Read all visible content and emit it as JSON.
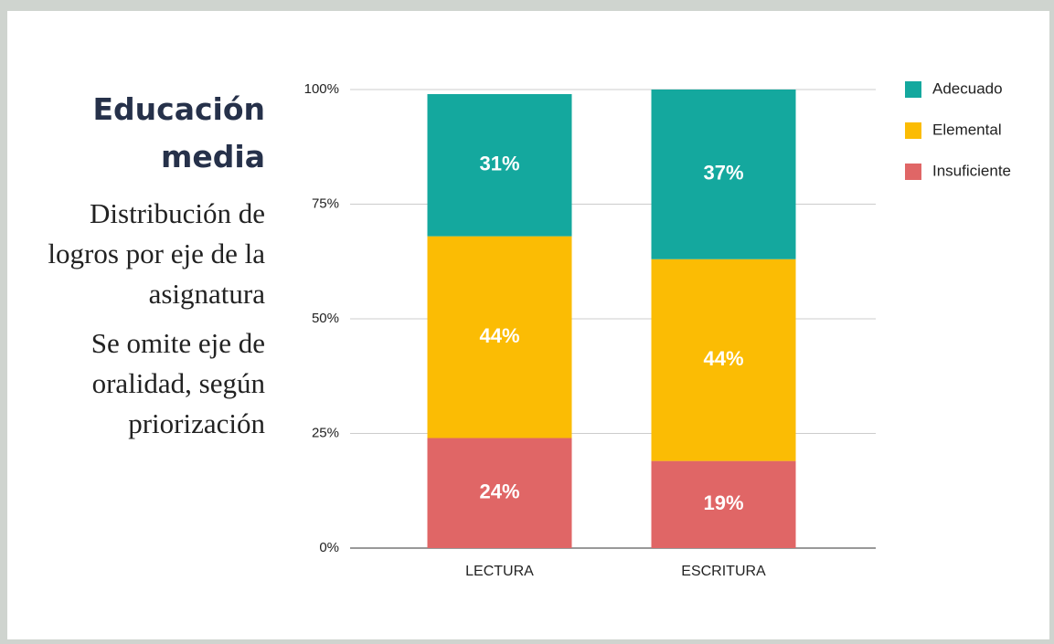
{
  "header": {
    "title": "Educación media",
    "paragraphs": [
      [
        "Distribución de",
        "logros por eje de la",
        "asignatura"
      ],
      [
        "Se omite eje de",
        "oralidad, según",
        "priorización"
      ]
    ]
  },
  "chart_data": {
    "type": "stacked_bar",
    "categories": [
      "LECTURA",
      "ESCRITURA"
    ],
    "series": [
      {
        "name": "Adecuado",
        "color": "#14a89e",
        "values": [
          31,
          37
        ],
        "value_labels": [
          "31%",
          "37%"
        ]
      },
      {
        "name": "Elemental",
        "color": "#fbbc04",
        "values": [
          44,
          44
        ],
        "value_labels": [
          "44%",
          "44%"
        ]
      },
      {
        "name": "Insuficiente",
        "color": "#e06666",
        "values": [
          24,
          19
        ],
        "value_labels": [
          "24%",
          "19%"
        ]
      }
    ],
    "ylim": [
      0,
      100
    ],
    "yticks": [
      {
        "value": 0,
        "label": "0%"
      },
      {
        "value": 25,
        "label": "25%"
      },
      {
        "value": 50,
        "label": "50%"
      },
      {
        "value": 75,
        "label": "75%"
      },
      {
        "value": 100,
        "label": "100%"
      }
    ],
    "grid": true,
    "legend": "right"
  }
}
